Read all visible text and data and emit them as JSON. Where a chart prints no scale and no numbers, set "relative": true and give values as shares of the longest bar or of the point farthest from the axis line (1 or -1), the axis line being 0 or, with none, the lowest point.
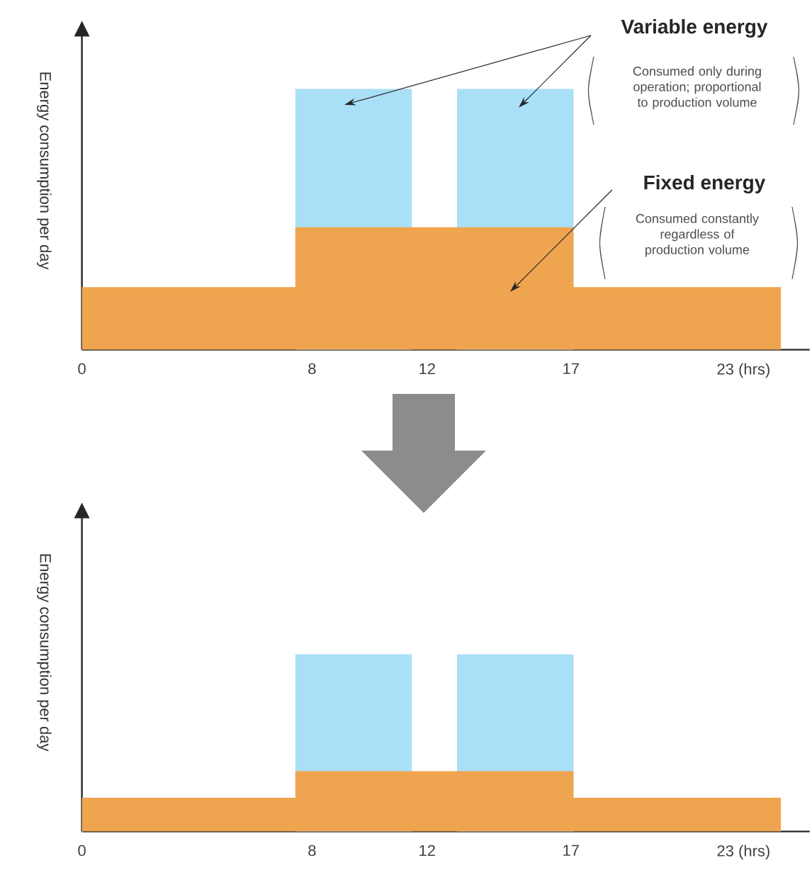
{
  "chart_data": [
    {
      "type": "area",
      "relative": true,
      "ylabel": "Energy consumption per day",
      "xlim": [
        0,
        25.3
      ],
      "xticks": [
        0,
        8,
        12,
        17,
        {
          "value": 23,
          "label": "23 (hrs)"
        }
      ],
      "series": [
        {
          "color": "#aadff8",
          "x": [
            7.42,
            7.42,
            11.47,
            11.47,
            13.04,
            13.04,
            17.09,
            17.09
          ],
          "values": [
            0,
            1,
            1,
            0,
            0,
            1,
            1,
            0
          ]
        },
        {
          "color": "#efa550",
          "x": [
            0,
            7.42,
            7.42,
            17.09,
            17.09,
            24.3
          ],
          "values": [
            0.24,
            0.24,
            0.47,
            0.47,
            0.24,
            0.24
          ]
        }
      ],
      "annotations": [
        "Variable energy",
        "Consumed only during operation; proportional to production volume",
        "Fixed energy",
        "Consumed constantly regardless of production volume"
      ]
    },
    {
      "type": "area",
      "relative": true,
      "ylabel": "Energy consumption per day",
      "xlim": [
        0,
        25.3
      ],
      "xticks": [
        0,
        8,
        12,
        17,
        {
          "value": 23,
          "label": "23 (hrs)"
        }
      ],
      "series": [
        {
          "color": "#aadff8",
          "x": [
            7.42,
            7.42,
            11.47,
            11.47,
            13.04,
            13.04,
            17.09,
            17.09
          ],
          "values": [
            0,
            1,
            1,
            0,
            0,
            1,
            1,
            0
          ]
        },
        {
          "color": "#efa550",
          "x": [
            0,
            7.42,
            7.42,
            17.09,
            17.09,
            24.3
          ],
          "values": [
            0.19,
            0.19,
            0.34,
            0.34,
            0.19,
            0.19
          ]
        }
      ]
    }
  ]
}
